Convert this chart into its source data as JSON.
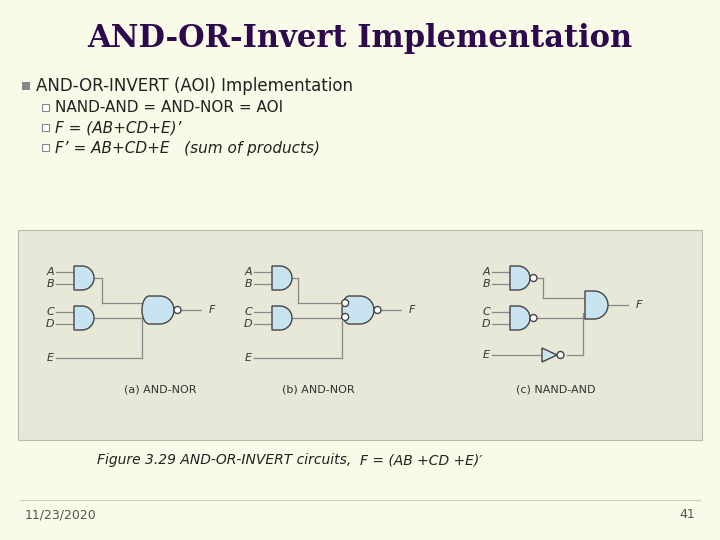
{
  "title": "AND-OR-Invert Implementation",
  "bg_color": "#FAFAE8",
  "title_color": "#2D0A4E",
  "title_fontsize": 22,
  "bullet1": "AND-OR-INVERT (AOI) Implementation",
  "sub1": "NAND-AND = AND-NOR = AOI",
  "sub2": "F = (AB+CD+E)’",
  "sub3": "F’ = AB+CD+E   (sum of products)",
  "fig_caption_pre": "Figure 3.29 AND-OR-INVERT circuits,  ",
  "fig_caption_math": "F = (AB +CD +E)′",
  "date_text": "11/23/2020",
  "page_num": "41",
  "gate_fill": "#C8E4F0",
  "gate_edge": "#444444",
  "wire_color": "#888888",
  "label_a1": "(a) AND-NOR",
  "label_b1": "(b) AND-NOR",
  "label_c1": "(c) NAND-AND",
  "circ_box_color": "#E8E8D8",
  "circ_box_edge": "#BBBBAA"
}
